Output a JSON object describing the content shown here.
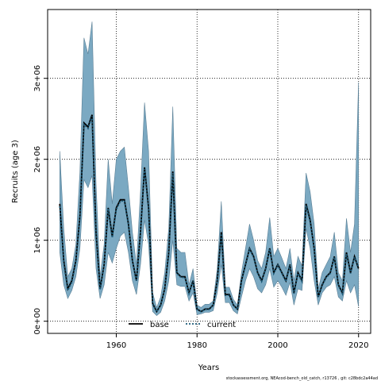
{
  "chart_data": {
    "type": "line",
    "title": "",
    "xlabel": "Years",
    "ylabel": "Recruits (age 3)",
    "xlim": [
      1943,
      2023
    ],
    "ylim": [
      -150000,
      3850000
    ],
    "grid": true,
    "x_ticks": [
      1960,
      1980,
      2000,
      2020
    ],
    "x_tick_labels": [
      "1960",
      "1980",
      "2000",
      "2020"
    ],
    "y_ticks": [
      0,
      1000000,
      2000000,
      3000000
    ],
    "y_tick_labels": [
      "0e+00",
      "1e+06",
      "2e+06",
      "3e+06"
    ],
    "legend": {
      "placement": "bottom-center",
      "entries": [
        "base",
        "current"
      ]
    },
    "colors": {
      "band": "#7ba9c2",
      "band_edge": "#5a7f95",
      "base": "#000000",
      "current": "#1c5a78"
    },
    "x": [
      1946,
      1947,
      1948,
      1949,
      1950,
      1951,
      1952,
      1953,
      1954,
      1955,
      1956,
      1957,
      1958,
      1959,
      1960,
      1961,
      1962,
      1963,
      1964,
      1965,
      1966,
      1967,
      1968,
      1969,
      1970,
      1971,
      1972,
      1973,
      1974,
      1975,
      1976,
      1977,
      1978,
      1979,
      1980,
      1981,
      1982,
      1983,
      1984,
      1985,
      1986,
      1987,
      1988,
      1989,
      1990,
      1991,
      1992,
      1993,
      1994,
      1995,
      1996,
      1997,
      1998,
      1999,
      2000,
      2001,
      2002,
      2003,
      2004,
      2005,
      2006,
      2007,
      2008,
      2009,
      2010,
      2011,
      2012,
      2013,
      2014,
      2015,
      2016,
      2017,
      2018,
      2019,
      2020
    ],
    "series": [
      {
        "name": "base",
        "style": "solid",
        "values": [
          1450000,
          750000,
          400000,
          500000,
          750000,
          1300000,
          2450000,
          2400000,
          2550000,
          1100000,
          400000,
          700000,
          1400000,
          1050000,
          1400000,
          1500000,
          1500000,
          1200000,
          750000,
          500000,
          1100000,
          1900000,
          1400000,
          220000,
          120000,
          200000,
          400000,
          850000,
          1850000,
          600000,
          550000,
          550000,
          350000,
          500000,
          150000,
          120000,
          150000,
          150000,
          200000,
          500000,
          1100000,
          330000,
          330000,
          200000,
          150000,
          500000,
          700000,
          900000,
          800000,
          600000,
          500000,
          650000,
          900000,
          600000,
          700000,
          600000,
          500000,
          700000,
          350000,
          600000,
          500000,
          1450000,
          1250000,
          900000,
          300000,
          450000,
          550000,
          600000,
          800000,
          450000,
          350000,
          850000,
          600000,
          800000,
          650000
        ]
      },
      {
        "name": "current",
        "style": "dotted",
        "values": [
          1420000,
          720000,
          380000,
          480000,
          730000,
          1280000,
          2430000,
          2380000,
          2530000,
          1080000,
          390000,
          690000,
          1390000,
          1030000,
          1380000,
          1480000,
          1490000,
          1190000,
          740000,
          490000,
          1080000,
          1880000,
          1380000,
          210000,
          115000,
          195000,
          390000,
          840000,
          1830000,
          590000,
          540000,
          540000,
          340000,
          490000,
          145000,
          118000,
          145000,
          145000,
          195000,
          490000,
          1080000,
          320000,
          320000,
          195000,
          145000,
          490000,
          690000,
          890000,
          790000,
          590000,
          490000,
          640000,
          890000,
          590000,
          690000,
          590000,
          490000,
          690000,
          340000,
          590000,
          490000,
          1430000,
          1230000,
          890000,
          295000,
          440000,
          540000,
          590000,
          790000,
          440000,
          340000,
          830000,
          590000,
          790000,
          670000
        ]
      }
    ],
    "ci": {
      "lower": [
        850000,
        450000,
        280000,
        380000,
        550000,
        900000,
        1750000,
        1650000,
        1800000,
        650000,
        280000,
        450000,
        850000,
        720000,
        900000,
        1050000,
        1100000,
        850000,
        500000,
        330000,
        700000,
        1250000,
        950000,
        120000,
        70000,
        110000,
        250000,
        500000,
        1000000,
        450000,
        430000,
        430000,
        250000,
        350000,
        80000,
        90000,
        110000,
        110000,
        130000,
        350000,
        700000,
        230000,
        230000,
        130000,
        90000,
        300000,
        500000,
        650000,
        550000,
        400000,
        350000,
        450000,
        650000,
        420000,
        500000,
        420000,
        320000,
        480000,
        200000,
        400000,
        380000,
        1150000,
        900000,
        500000,
        200000,
        350000,
        420000,
        450000,
        550000,
        300000,
        250000,
        500000,
        350000,
        450000,
        180000
      ],
      "upper": [
        2100000,
        1150000,
        550000,
        650000,
        950000,
        1850000,
        3500000,
        3300000,
        3700000,
        1700000,
        550000,
        950000,
        2000000,
        1450000,
        2000000,
        2100000,
        2150000,
        1650000,
        1100000,
        700000,
        1600000,
        2700000,
        2100000,
        350000,
        170000,
        300000,
        600000,
        1150000,
        2650000,
        900000,
        850000,
        850000,
        450000,
        650000,
        200000,
        170000,
        210000,
        210000,
        250000,
        650000,
        1480000,
        420000,
        420000,
        270000,
        200000,
        600000,
        900000,
        1200000,
        1000000,
        750000,
        650000,
        850000,
        1280000,
        800000,
        900000,
        780000,
        650000,
        900000,
        500000,
        800000,
        680000,
        1830000,
        1600000,
        1200000,
        400000,
        600000,
        700000,
        800000,
        1100000,
        600000,
        500000,
        1270000,
        850000,
        1200000,
        2950000
      ]
    }
  },
  "footer_text": "stockassessment.org, NEAcod-bench_old_catch, r13726 ,  git: c28bdc2a44ad"
}
